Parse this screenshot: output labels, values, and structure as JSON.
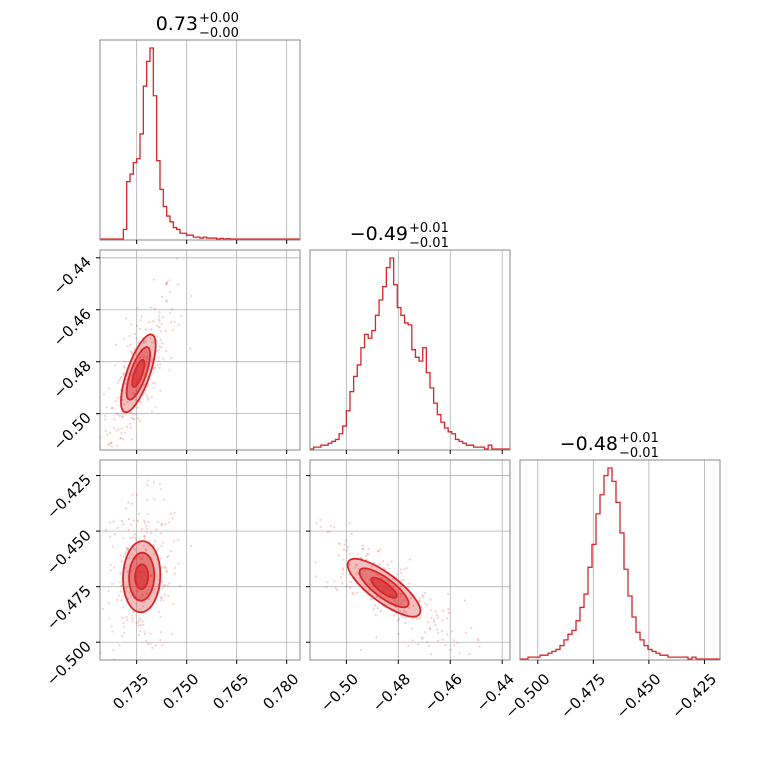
{
  "chart_data": {
    "type": "corner",
    "color": "#d62728",
    "grid": true,
    "parameters": [
      {
        "title_value": "0.73",
        "title_plus": "+0.00",
        "title_minus": "−0.00",
        "range": [
          0.724,
          0.784
        ],
        "ticks": [
          0.735,
          0.75,
          0.765,
          0.78
        ],
        "tick_labels": [
          "0.735",
          "0.750",
          "0.765",
          "0.780"
        ],
        "histogram": [
          0,
          0,
          0,
          0,
          0,
          0,
          0,
          0.05,
          0.3,
          0.34,
          0.4,
          0.42,
          0.55,
          0.8,
          0.93,
          1.0,
          0.75,
          0.41,
          0.26,
          0.17,
          0.12,
          0.09,
          0.06,
          0.05,
          0.03,
          0.03,
          0.02,
          0.02,
          0.01,
          0.01,
          0.005,
          0.01,
          0.005,
          0.005,
          0.005,
          0.0,
          0.003,
          0,
          0.002,
          0,
          0,
          0,
          0,
          0,
          0,
          0,
          0,
          0,
          0,
          0,
          0,
          0,
          0,
          0,
          0,
          0,
          0,
          0,
          0,
          0
        ]
      },
      {
        "title_value": "−0.49",
        "title_plus": "+0.01",
        "title_minus": "−0.01",
        "range": [
          -0.514,
          -0.437
        ],
        "ticks": [
          -0.5,
          -0.48,
          -0.46,
          -0.44
        ],
        "tick_labels": [
          "−0.50",
          "−0.48",
          "−0.46",
          "−0.44"
        ],
        "histogram": [
          0,
          0.01,
          0.01,
          0.02,
          0.02,
          0.03,
          0.04,
          0.05,
          0.08,
          0.12,
          0.2,
          0.3,
          0.38,
          0.44,
          0.53,
          0.6,
          0.58,
          0.62,
          0.7,
          0.78,
          0.85,
          0.95,
          1.0,
          0.86,
          0.74,
          0.7,
          0.66,
          0.65,
          0.52,
          0.48,
          0.46,
          0.53,
          0.4,
          0.32,
          0.24,
          0.18,
          0.14,
          0.11,
          0.09,
          0.08,
          0.05,
          0.04,
          0.03,
          0.02,
          0.02,
          0.01,
          0.01,
          0.01,
          0.0,
          0.02,
          0.0,
          0.0,
          0.0,
          0.0,
          0.0
        ]
      },
      {
        "title_value": "−0.48",
        "title_plus": "+0.01",
        "title_minus": "−0.01",
        "range": [
          -0.508,
          -0.418
        ],
        "ticks": [
          -0.5,
          -0.475,
          -0.45,
          -0.425
        ],
        "tick_labels": [
          "−0.500",
          "−0.475",
          "−0.450",
          "−0.425"
        ],
        "histogram": [
          0,
          0,
          0.01,
          0.01,
          0.01,
          0.02,
          0.02,
          0.03,
          0.04,
          0.05,
          0.07,
          0.1,
          0.13,
          0.15,
          0.2,
          0.27,
          0.34,
          0.48,
          0.6,
          0.76,
          0.86,
          0.96,
          1.0,
          0.93,
          0.82,
          0.66,
          0.47,
          0.33,
          0.22,
          0.14,
          0.1,
          0.07,
          0.05,
          0.04,
          0.03,
          0.02,
          0.02,
          0.01,
          0.01,
          0.01,
          0.01,
          0.01,
          0.0,
          0.01,
          0.0,
          0.0,
          0.0,
          0.0,
          0.0,
          0.0
        ]
      }
    ],
    "pairs": [
      {
        "row": 1,
        "col": 0,
        "mean": [
          0.7355,
          -0.4845
        ],
        "sd": [
          0.0026,
          0.0075
        ],
        "rho": 0.72
      },
      {
        "row": 2,
        "col": 0,
        "mean": [
          0.7365,
          -0.4705
        ],
        "sd": [
          0.0028,
          0.008
        ],
        "rho": 0.05
      },
      {
        "row": 2,
        "col": 1,
        "mean": [
          -0.4855,
          -0.4755
        ],
        "sd": [
          0.007,
          0.0065
        ],
        "rho": -0.8
      }
    ]
  }
}
